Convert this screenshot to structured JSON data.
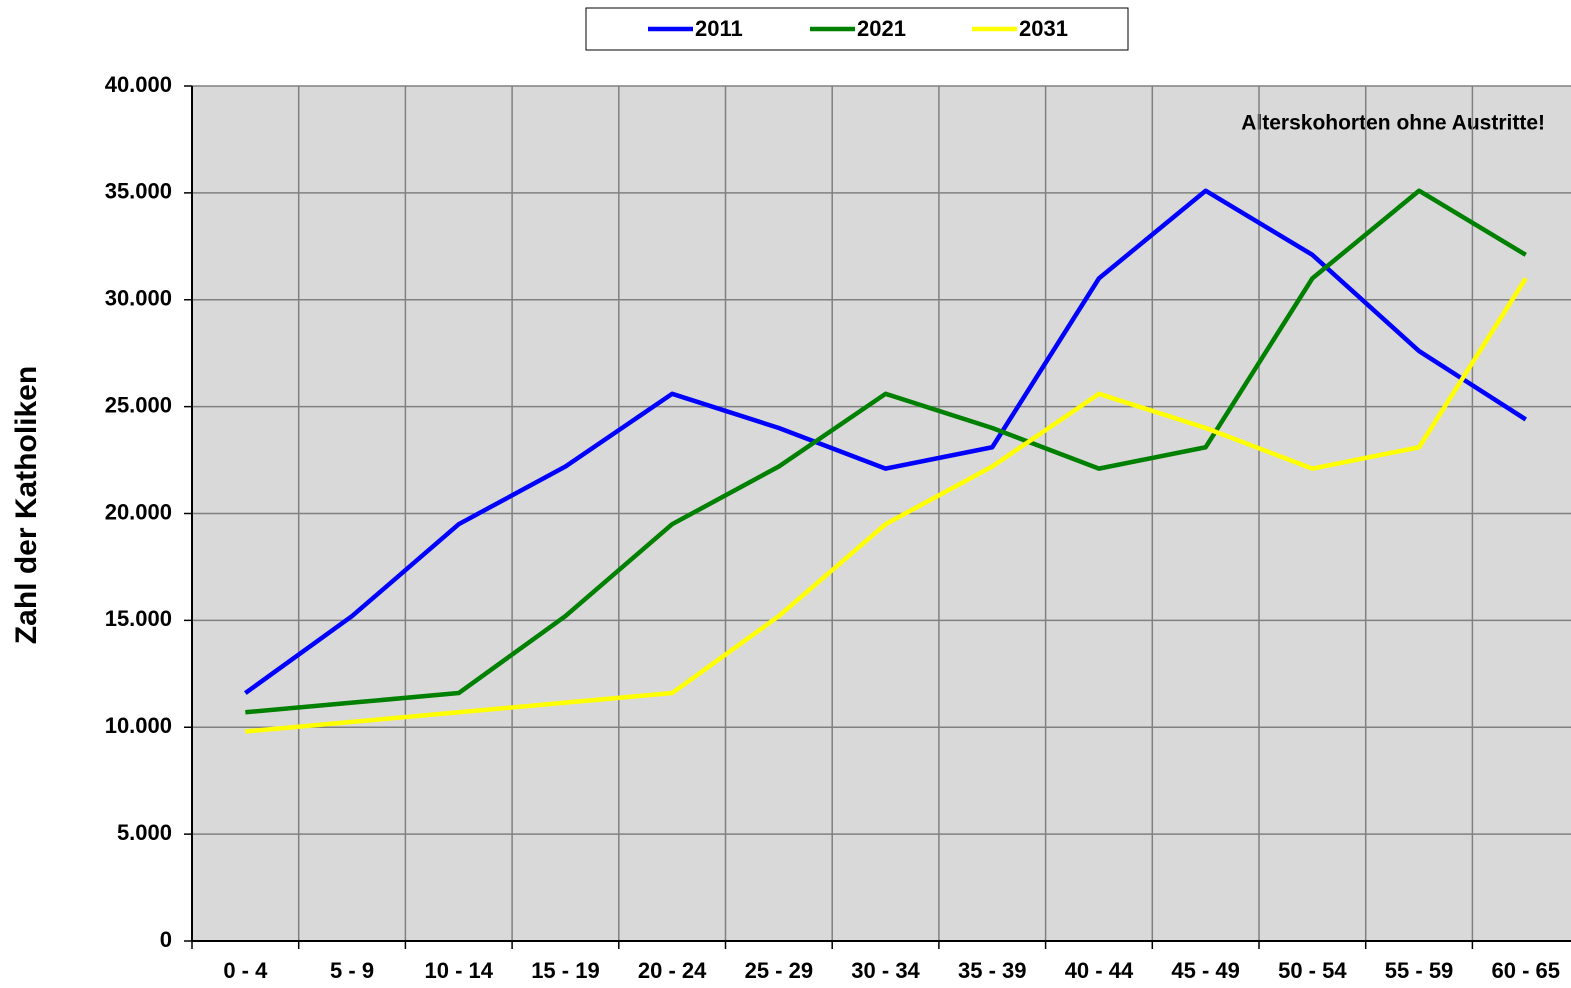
{
  "chart_data": {
    "type": "line",
    "y_label": "Zahl der Katholiken",
    "annotation": "Alterskohorten ohne Austritte!",
    "categories": [
      "0 - 4",
      "5 - 9",
      "10 - 14",
      "15 - 19",
      "20 - 24",
      "25 - 29",
      "30 - 34",
      "35 - 39",
      "40 - 44",
      "45 - 49",
      "50 - 54",
      "55 - 59",
      "60 - 65"
    ],
    "series": [
      {
        "name": "2011",
        "color": "#0000ff",
        "values": [
          11600,
          15200,
          19500,
          22200,
          25600,
          24000,
          22100,
          23100,
          31000,
          35100,
          32100,
          27600,
          24400
        ]
      },
      {
        "name": "2021",
        "color": "#008000",
        "values": [
          10700,
          11150,
          11600,
          15200,
          19500,
          22200,
          25600,
          24000,
          22100,
          23100,
          31000,
          35100,
          32100
        ]
      },
      {
        "name": "2031",
        "color": "#ffff00",
        "values": [
          9800,
          10250,
          10700,
          11150,
          11600,
          15200,
          19500,
          22200,
          25600,
          24000,
          22100,
          23100,
          31000
        ]
      }
    ],
    "ylim": [
      0,
      40000
    ],
    "yticks": [
      0,
      {
        "value": 5000,
        "label": "5.000"
      },
      {
        "value": 10000,
        "label": "10.000"
      },
      {
        "value": 15000,
        "label": "15.000"
      },
      {
        "value": 20000,
        "label": "20.000"
      },
      {
        "value": 25000,
        "label": "25.000"
      },
      {
        "value": 30000,
        "label": "30.000"
      },
      {
        "value": 35000,
        "label": "35.000"
      },
      {
        "value": 40000,
        "label": "40.000"
      }
    ],
    "grid": true,
    "legend": "top"
  }
}
